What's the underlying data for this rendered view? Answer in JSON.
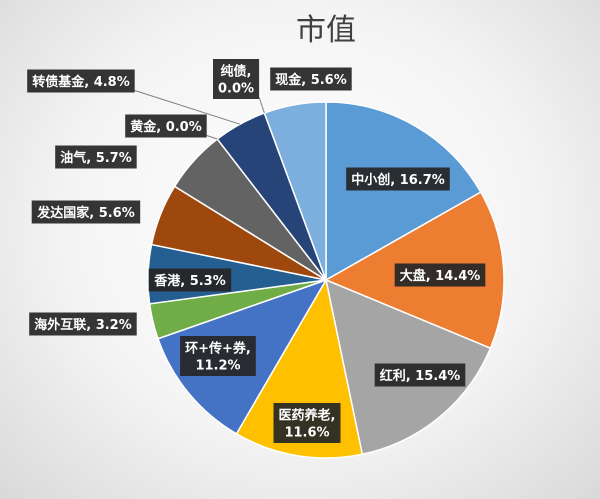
{
  "chart_data": {
    "type": "pie",
    "title": "市值",
    "slices": [
      {
        "name": "中小创",
        "value": 16.7,
        "label": "中小创, 16.7%",
        "color": "#5b9bd5"
      },
      {
        "name": "大盘",
        "value": 14.4,
        "label": "大盘, 14.4%",
        "color": "#ed7d31"
      },
      {
        "name": "红利",
        "value": 15.4,
        "label": "红利, 15.4%",
        "color": "#a5a5a5"
      },
      {
        "name": "医药养老",
        "value": 11.6,
        "label": "医药养老,\n11.6%",
        "color": "#ffc000"
      },
      {
        "name": "环+传+券",
        "value": 11.2,
        "label": "环+传+券,\n11.2%",
        "color": "#4472c4"
      },
      {
        "name": "海外互联",
        "value": 3.2,
        "label": "海外互联, 3.2%",
        "color": "#70ad47"
      },
      {
        "name": "香港",
        "value": 5.3,
        "label": "香港, 5.3%",
        "color": "#255e91"
      },
      {
        "name": "发达国家",
        "value": 5.6,
        "label": "发达国家, 5.6%",
        "color": "#9e480e"
      },
      {
        "name": "油气",
        "value": 5.7,
        "label": "油气, 5.7%",
        "color": "#636363"
      },
      {
        "name": "黄金",
        "value": 0.0,
        "label": "黄金, 0.0%",
        "color": "#997300"
      },
      {
        "name": "转债基金",
        "value": 4.8,
        "label": "转债基金, 4.8%",
        "color": "#264478"
      },
      {
        "name": "纯债",
        "value": 0.0,
        "label": "纯债,\n0.0%",
        "color": "#43682b"
      },
      {
        "name": "现金",
        "value": 5.6,
        "label": "现金, 5.6%",
        "color": "#7cafdd"
      }
    ],
    "legend": "none"
  }
}
